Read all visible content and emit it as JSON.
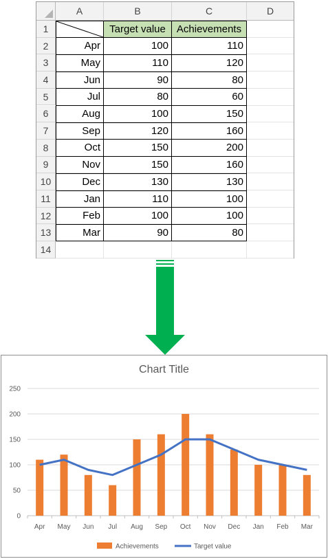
{
  "sheet": {
    "columns": [
      "A",
      "B",
      "C",
      "D"
    ],
    "rows": [
      "1",
      "2",
      "3",
      "4",
      "5",
      "6",
      "7",
      "8",
      "9",
      "10",
      "11",
      "12",
      "13",
      "14"
    ],
    "header": {
      "b": "Target value",
      "c": "Achievements"
    },
    "data": [
      {
        "month": "Apr",
        "target": "100",
        "achievement": "110"
      },
      {
        "month": "May",
        "target": "110",
        "achievement": "120"
      },
      {
        "month": "Jun",
        "target": "90",
        "achievement": "80"
      },
      {
        "month": "Jul",
        "target": "80",
        "achievement": "60"
      },
      {
        "month": "Aug",
        "target": "100",
        "achievement": "150"
      },
      {
        "month": "Sep",
        "target": "120",
        "achievement": "160"
      },
      {
        "month": "Oct",
        "target": "150",
        "achievement": "200"
      },
      {
        "month": "Nov",
        "target": "150",
        "achievement": "160"
      },
      {
        "month": "Dec",
        "target": "130",
        "achievement": "130"
      },
      {
        "month": "Jan",
        "target": "110",
        "achievement": "100"
      },
      {
        "month": "Feb",
        "target": "100",
        "achievement": "100"
      },
      {
        "month": "Mar",
        "target": "90",
        "achievement": "80"
      }
    ]
  },
  "arrow": {
    "color": "#00b050",
    "icon": "down-arrow-icon"
  },
  "chart_data": {
    "type": "bar+line",
    "title": "Chart Title",
    "categories": [
      "Apr",
      "May",
      "Jun",
      "Jul",
      "Aug",
      "Sep",
      "Oct",
      "Nov",
      "Dec",
      "Jan",
      "Feb",
      "Mar"
    ],
    "series": [
      {
        "name": "Achievements",
        "type": "bar",
        "color": "#ed7d31",
        "values": [
          110,
          120,
          80,
          60,
          150,
          160,
          200,
          160,
          130,
          100,
          100,
          80
        ]
      },
      {
        "name": "Target value",
        "type": "line",
        "color": "#4472c4",
        "values": [
          100,
          110,
          90,
          80,
          100,
          120,
          150,
          150,
          130,
          110,
          100,
          90
        ]
      }
    ],
    "yticks": [
      "0",
      "50",
      "100",
      "150",
      "200",
      "250"
    ],
    "ylim": [
      0,
      250
    ],
    "grid": true,
    "legend": "bottom"
  }
}
